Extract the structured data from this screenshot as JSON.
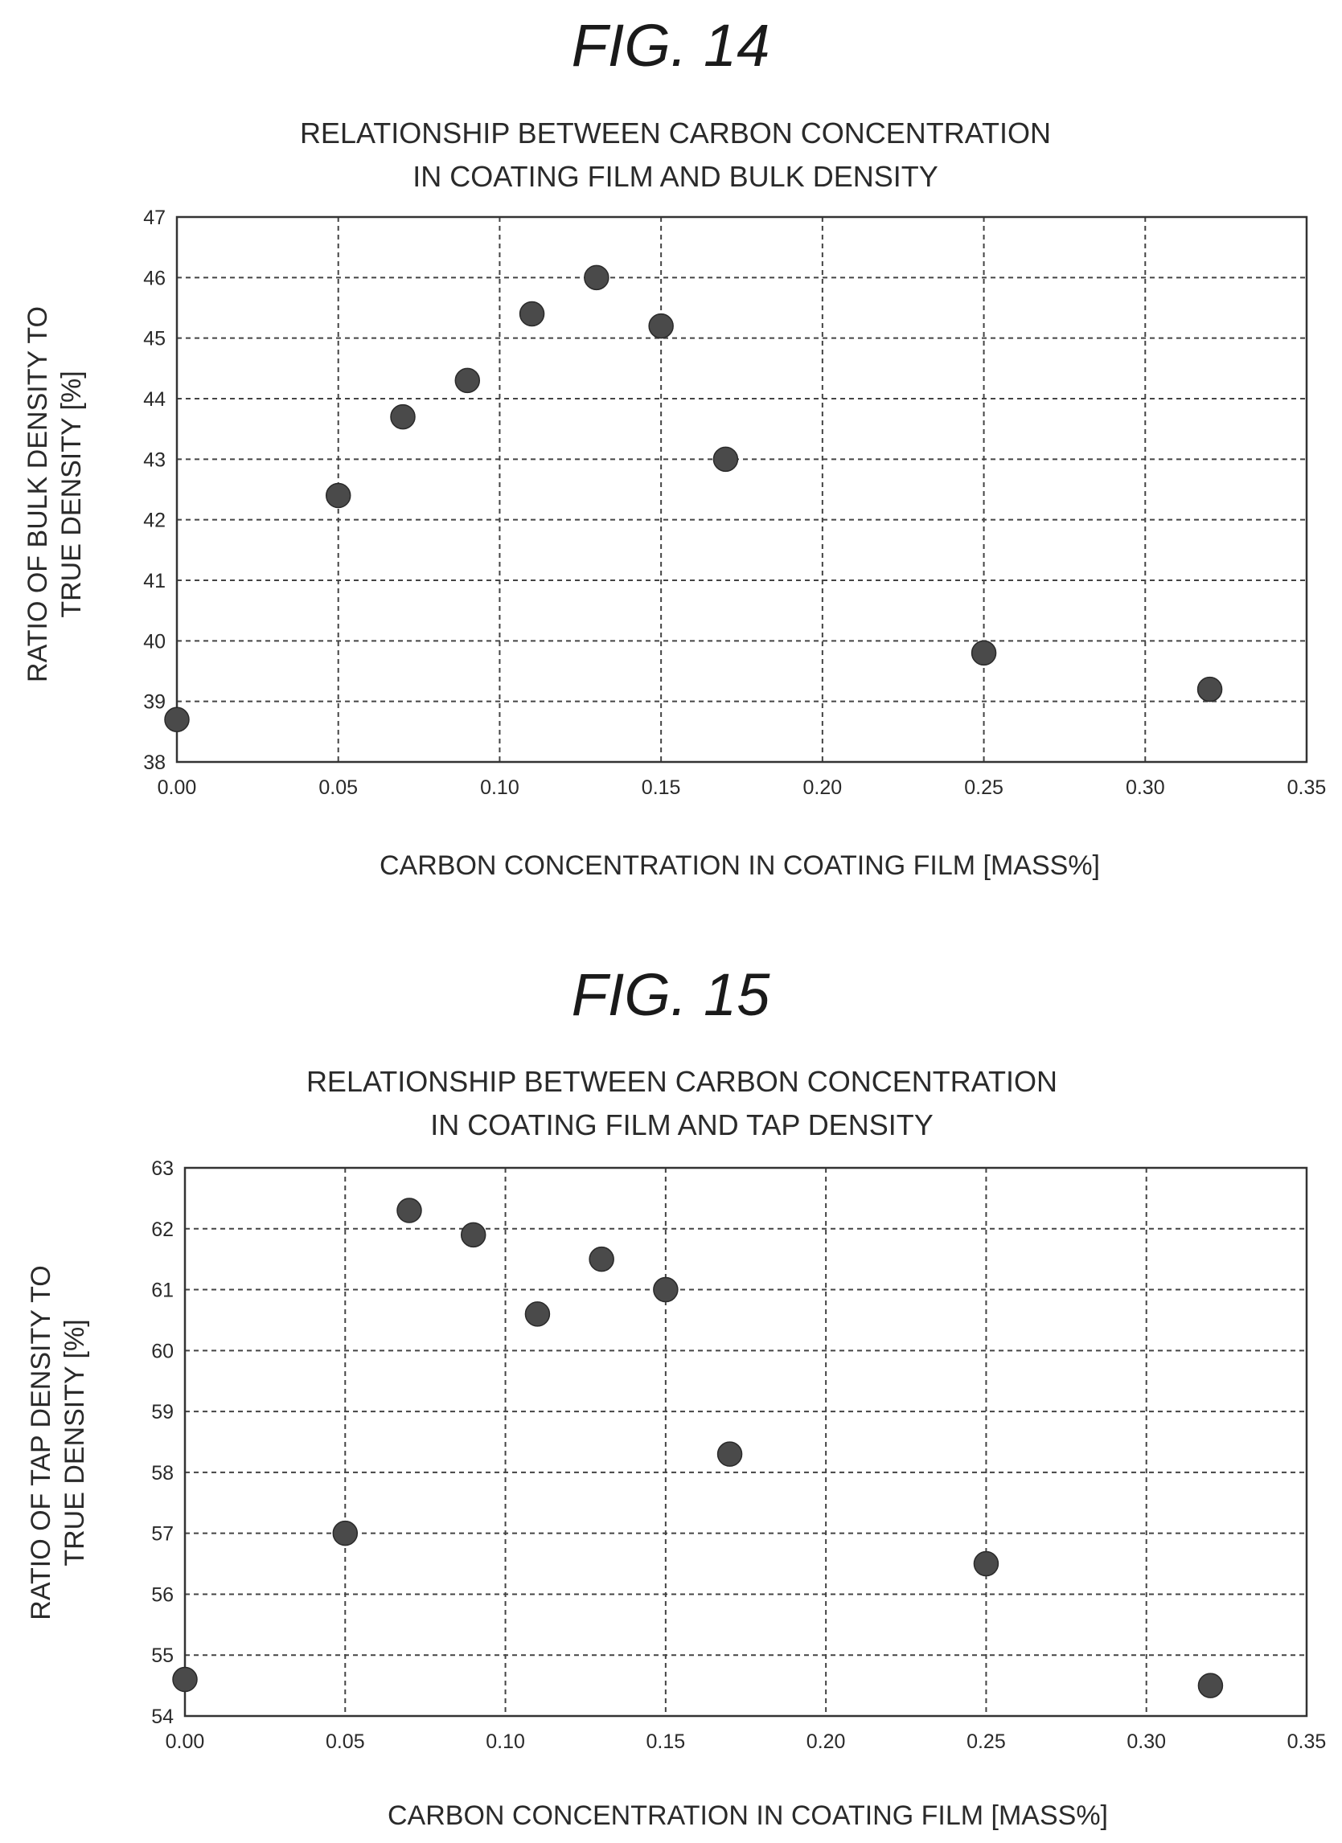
{
  "chart_data": [
    {
      "figure_label": "FIG. 14",
      "type": "scatter",
      "title_lines": [
        "RELATIONSHIP BETWEEN CARBON CONCENTRATION",
        "IN COATING FILM AND BULK DENSITY"
      ],
      "xlabel": "CARBON CONCENTRATION IN COATING FILM [MASS%]",
      "ylabel_lines": [
        "RATIO OF BULK DENSITY TO",
        "TRUE DENSITY [%]"
      ],
      "xlim": [
        0,
        0.35
      ],
      "ylim": [
        38,
        47
      ],
      "x_ticks": [
        "0.00",
        "0.05",
        "0.10",
        "0.15",
        "0.20",
        "0.25",
        "0.30",
        "0.35"
      ],
      "y_ticks": [
        "38",
        "39",
        "40",
        "41",
        "42",
        "43",
        "44",
        "45",
        "46",
        "47"
      ],
      "grid": true,
      "series": [
        {
          "x": [
            0.0,
            0.05,
            0.07,
            0.09,
            0.11,
            0.13,
            0.15,
            0.17,
            0.25,
            0.32
          ],
          "y": [
            38.7,
            42.4,
            43.7,
            44.3,
            45.4,
            46.0,
            45.2,
            43.0,
            39.8,
            39.2
          ]
        }
      ]
    },
    {
      "figure_label": "FIG. 15",
      "type": "scatter",
      "title_lines": [
        "RELATIONSHIP BETWEEN CARBON CONCENTRATION",
        "IN COATING FILM AND TAP DENSITY"
      ],
      "xlabel": "CARBON CONCENTRATION IN COATING FILM [MASS%]",
      "ylabel_lines": [
        "RATIO OF TAP DENSITY TO",
        "TRUE DENSITY [%]"
      ],
      "xlim": [
        0,
        0.35
      ],
      "ylim": [
        54,
        63
      ],
      "x_ticks": [
        "0.00",
        "0.05",
        "0.10",
        "0.15",
        "0.20",
        "0.25",
        "0.30",
        "0.35"
      ],
      "y_ticks": [
        "54",
        "55",
        "56",
        "57",
        "58",
        "59",
        "60",
        "61",
        "62",
        "63"
      ],
      "grid": true,
      "series": [
        {
          "x": [
            0.0,
            0.05,
            0.07,
            0.09,
            0.11,
            0.13,
            0.15,
            0.17,
            0.25,
            0.32
          ],
          "y": [
            54.6,
            57.0,
            62.3,
            61.9,
            60.6,
            61.5,
            61.0,
            58.3,
            56.5,
            54.5
          ]
        }
      ]
    }
  ]
}
